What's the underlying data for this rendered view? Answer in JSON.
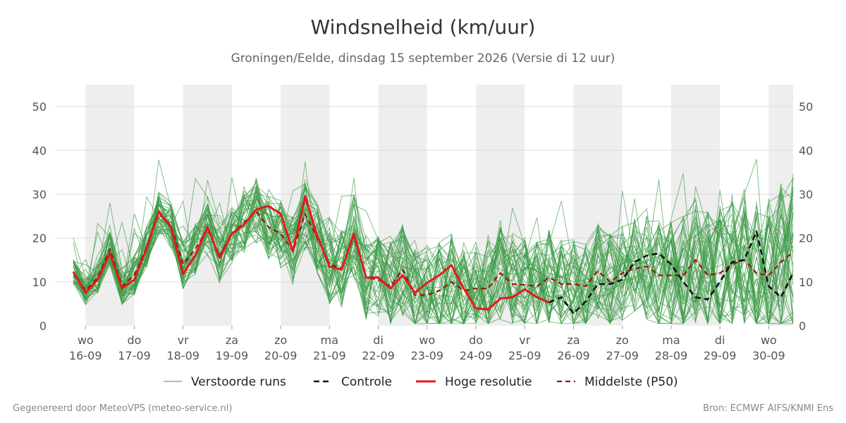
{
  "header": {
    "title": "Windsnelheid (km/uur)",
    "subtitle": "Groningen/Eelde, dinsdag 15 september 2026 (Versie di 12 uur)"
  },
  "footer": {
    "left": "Gegenereerd door MeteoVPS (meteo-service.nl)",
    "right": "Bron: ECMWF AIFS/KNMI Ens"
  },
  "chart_data": {
    "type": "line",
    "title": "Windsnelheid (km/uur)",
    "ylim": [
      0,
      55
    ],
    "yticks": [
      0,
      10,
      20,
      30,
      40,
      50
    ],
    "xlim": [
      -0.625,
      14.5
    ],
    "grid": true,
    "legend_position": "bottom",
    "shaded_days": [
      0,
      2,
      4,
      6,
      8,
      10,
      12,
      14
    ],
    "x_ticks": [
      {
        "x": 0,
        "day": "wo",
        "date": "16-09"
      },
      {
        "x": 1,
        "day": "do",
        "date": "17-09"
      },
      {
        "x": 2,
        "day": "vr",
        "date": "18-09"
      },
      {
        "x": 3,
        "day": "za",
        "date": "19-09"
      },
      {
        "x": 4,
        "day": "zo",
        "date": "20-09"
      },
      {
        "x": 5,
        "day": "ma",
        "date": "21-09"
      },
      {
        "x": 6,
        "day": "di",
        "date": "22-09"
      },
      {
        "x": 7,
        "day": "wo",
        "date": "23-09"
      },
      {
        "x": 8,
        "day": "do",
        "date": "24-09"
      },
      {
        "x": 9,
        "day": "vr",
        "date": "25-09"
      },
      {
        "x": 10,
        "day": "za",
        "date": "26-09"
      },
      {
        "x": 11,
        "day": "zo",
        "date": "27-09"
      },
      {
        "x": 12,
        "day": "ma",
        "date": "28-09"
      },
      {
        "x": 13,
        "day": "di",
        "date": "29-09"
      },
      {
        "x": 14,
        "day": "wo",
        "date": "30-09"
      }
    ],
    "colors": {
      "ensemble": "#3a9a45",
      "control": "#111111",
      "hires": "#e31a1c",
      "median": "#a01010",
      "shade": "#eeeeee",
      "grid": "#dddddd"
    },
    "legend": [
      {
        "key": "ensemble",
        "label": "Verstoorde runs"
      },
      {
        "key": "control",
        "label": "Controle"
      },
      {
        "key": "hires",
        "label": "Hoge resolutie"
      },
      {
        "key": "median",
        "label": "Middelste (P50)"
      }
    ],
    "series": [
      {
        "name": "Hoge resolutie",
        "key": "hires",
        "x": [
          -0.25,
          0,
          0.25,
          0.5,
          0.75,
          1,
          1.25,
          1.5,
          1.75,
          2,
          2.25,
          2.5,
          2.75,
          3,
          3.25,
          3.5,
          3.75,
          4,
          4.25,
          4.5,
          4.75,
          5,
          5.25,
          5.5,
          5.75,
          6,
          6.25,
          6.5,
          6.75,
          7,
          7.25,
          7.5,
          7.75,
          8,
          8.25,
          8.5,
          8.75,
          9,
          9.25,
          9.5
        ],
        "y": [
          12.3,
          7.5,
          10.5,
          16.5,
          8.5,
          10.5,
          17.5,
          26,
          22.5,
          11.8,
          16,
          22.5,
          15.5,
          21,
          23,
          26.5,
          27.3,
          25.5,
          17,
          29.5,
          20.5,
          13.5,
          12.8,
          21,
          11,
          11,
          8.5,
          11.5,
          7.5,
          9.8,
          11.5,
          13.8,
          8.5,
          4,
          3.7,
          6.2,
          6.5,
          8.3,
          6.5,
          5.3
        ]
      },
      {
        "name": "Controle",
        "key": "control",
        "x": [
          9.5,
          9.75,
          10,
          10.25,
          10.5,
          10.75,
          11,
          11.25,
          11.5,
          11.75,
          12,
          12.25,
          12.5,
          12.75,
          13,
          13.25,
          13.5,
          13.75,
          14,
          14.25,
          14.5
        ],
        "y": [
          5.3,
          6.5,
          2.8,
          5.5,
          9.5,
          9.5,
          10.5,
          14.5,
          16,
          16.5,
          14,
          10,
          6.5,
          6,
          10,
          14.5,
          15,
          21.5,
          9,
          6.5,
          12
        ]
      },
      {
        "name": "Middelste (P50)",
        "key": "median",
        "x": [
          -0.25,
          0,
          0.25,
          0.5,
          0.75,
          1,
          1.25,
          1.5,
          1.75,
          2,
          2.25,
          2.5,
          2.75,
          3,
          3.25,
          3.5,
          3.75,
          4,
          4.25,
          4.5,
          4.75,
          5,
          5.25,
          5.5,
          5.75,
          6,
          6.25,
          6.5,
          6.75,
          7,
          7.25,
          7.5,
          7.75,
          8,
          8.25,
          8.5,
          8.75,
          9,
          9.25,
          9.5,
          9.75,
          10,
          10.25,
          10.5,
          10.75,
          11,
          11.25,
          11.5,
          11.75,
          12,
          12.25,
          12.5,
          12.75,
          13,
          13.25,
          13.5,
          13.75,
          14,
          14.25,
          14.5
        ],
        "y": [
          12.3,
          8,
          11,
          17.5,
          9,
          11.5,
          18,
          25.5,
          23,
          14,
          17.5,
          22,
          16,
          21,
          23.5,
          26,
          22.5,
          21,
          17,
          25.5,
          20,
          14,
          13,
          20.5,
          11,
          10.5,
          9,
          12.8,
          7,
          7,
          8,
          10,
          8,
          8.5,
          8.5,
          12,
          9.5,
          9.3,
          9,
          11,
          9.5,
          9.5,
          9,
          12.5,
          10,
          12,
          13,
          13.5,
          11.5,
          11.5,
          11.5,
          15,
          11.5,
          12,
          14,
          15,
          12,
          11.5,
          14.5,
          16.8
        ]
      }
    ]
  }
}
